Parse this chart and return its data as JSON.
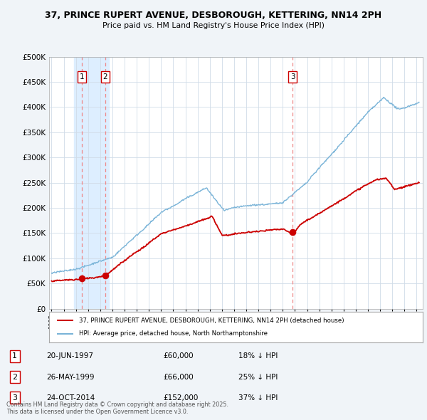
{
  "title": "37, PRINCE RUPERT AVENUE, DESBOROUGH, KETTERING, NN14 2PH",
  "subtitle": "Price paid vs. HM Land Registry's House Price Index (HPI)",
  "bg_color": "#f0f4f8",
  "plot_bg_color": "#ffffff",
  "grid_color": "#d0dce8",
  "legend_line1": "37, PRINCE RUPERT AVENUE, DESBOROUGH, KETTERING, NN14 2PH (detached house)",
  "legend_line2": "HPI: Average price, detached house, North Northamptonshire",
  "sale_dates_numeric": [
    1997.47,
    1999.4,
    2014.81
  ],
  "sale_prices": [
    60000,
    66000,
    152000
  ],
  "sale_labels": [
    "1",
    "2",
    "3"
  ],
  "sale_info": [
    {
      "num": "1",
      "date": "20-JUN-1997",
      "price": "£60,000",
      "hpi": "18% ↓ HPI"
    },
    {
      "num": "2",
      "date": "26-MAY-1999",
      "price": "£66,000",
      "hpi": "25% ↓ HPI"
    },
    {
      "num": "3",
      "date": "24-OCT-2014",
      "price": "£152,000",
      "hpi": "37% ↓ HPI"
    }
  ],
  "footer": "Contains HM Land Registry data © Crown copyright and database right 2025.\nThis data is licensed under the Open Government Licence v3.0.",
  "hpi_color": "#7ab4d8",
  "price_color": "#cc0000",
  "vline_color": "#ee8888",
  "highlight_color": "#ddeeff",
  "ylim": [
    0,
    500000
  ],
  "yticks": [
    0,
    50000,
    100000,
    150000,
    200000,
    250000,
    300000,
    350000,
    400000,
    450000,
    500000
  ],
  "xlim_start": 1994.8,
  "xlim_end": 2025.5
}
